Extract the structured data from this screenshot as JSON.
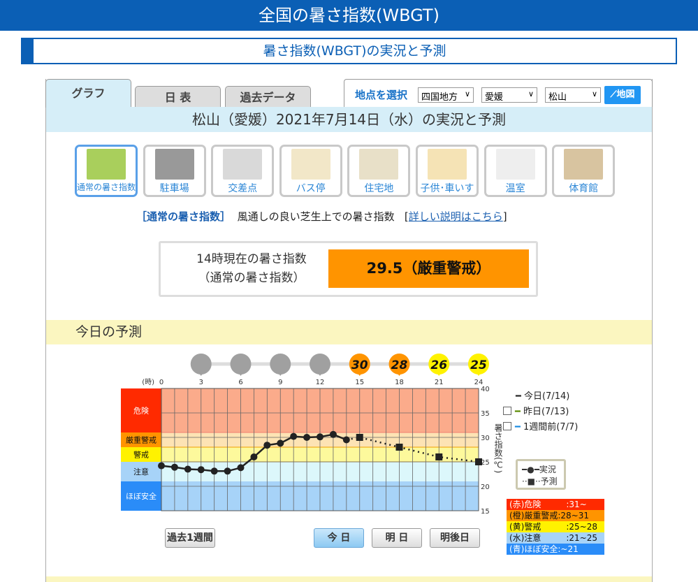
{
  "header": {
    "title": "全国の暑さ指数(WBGT)",
    "subtitle": "暑さ指数(WBGT)の実況と予測"
  },
  "tabs": [
    {
      "label": "グラフ",
      "active": true
    },
    {
      "label": "日 表"
    },
    {
      "label": "過去データ"
    }
  ],
  "location": {
    "label": "地点を選択",
    "region": "四国地方",
    "prefecture": "愛媛",
    "station": "松山",
    "map_button": "地図"
  },
  "date_title": "松山（愛媛）2021年7月14日（水）の実況と予測",
  "categories": [
    {
      "label": "通常の暑さ指数",
      "selected": true,
      "color": "#a9cf5c"
    },
    {
      "label": "駐車場",
      "color": "#999"
    },
    {
      "label": "交差点",
      "color": "#d9d9d9"
    },
    {
      "label": "バス停",
      "color": "#f2e7c8"
    },
    {
      "label": "住宅地",
      "color": "#e8e0c8"
    },
    {
      "label": "子供･車いす",
      "color": "#f5e3b5"
    },
    {
      "label": "温室",
      "color": "#eeeeee"
    },
    {
      "label": "体育館",
      "color": "#d8c4a0"
    }
  ],
  "description": {
    "title": "［通常の暑さ指数］",
    "text": "風通しの良い芝生上での暑さ指数",
    "link": "詳しい説明はこちら",
    "link_open": "[",
    "link_close": "]"
  },
  "current": {
    "label1": "14時現在の暑さ指数",
    "label2": "（通常の暑さ指数）",
    "value": "29.5（厳重警戒）",
    "color": "#ff9400"
  },
  "forecast_heading": "今日の予測",
  "chart_data": {
    "type": "line",
    "xlabel": "(時)",
    "ylabel": "暑さ指数(℃)",
    "xlim": [
      0,
      24
    ],
    "ylim": [
      15,
      40
    ],
    "x_ticks": [
      0,
      3,
      6,
      9,
      12,
      15,
      18,
      21,
      24
    ],
    "y_ticks": [
      15,
      20,
      25,
      30,
      35,
      40
    ],
    "series": [
      {
        "name": "実況",
        "x": [
          0,
          1,
          2,
          3,
          4,
          5,
          6,
          7,
          8,
          9,
          10,
          11,
          12,
          13,
          14
        ],
        "y": [
          24.2,
          23.9,
          23.5,
          23.4,
          23.1,
          23.1,
          23.8,
          26.0,
          28.4,
          28.8,
          30.2,
          30.0,
          30.1,
          30.6,
          29.5
        ],
        "style": "solid-circle"
      },
      {
        "name": "予測",
        "x": [
          15,
          18,
          21,
          24
        ],
        "y": [
          30,
          28,
          26,
          25
        ],
        "style": "dotted-square"
      }
    ],
    "hour_markers": [
      {
        "hour": 3,
        "value": "",
        "color": "#a0a0a0"
      },
      {
        "hour": 6,
        "value": "",
        "color": "#a0a0a0"
      },
      {
        "hour": 9,
        "value": "",
        "color": "#a0a0a0"
      },
      {
        "hour": 12,
        "value": "",
        "color": "#a0a0a0"
      },
      {
        "hour": 15,
        "value": "30",
        "color": "#ff9400"
      },
      {
        "hour": 18,
        "value": "28",
        "color": "#ff9400"
      },
      {
        "hour": 21,
        "value": "26",
        "color": "#fff200"
      },
      {
        "hour": 24,
        "value": "25",
        "color": "#fff200"
      }
    ],
    "bands": [
      {
        "label": "危険",
        "from": 31,
        "to": 40,
        "label_color": "#ff2a00",
        "fill": "#fbab8b",
        "text": "#fff"
      },
      {
        "label": "厳重警戒",
        "from": 28,
        "to": 31,
        "label_color": "#ff9400",
        "fill": "#fde3b4",
        "text": "#111"
      },
      {
        "label": "警戒",
        "from": 25,
        "to": 28,
        "label_color": "#fff200",
        "fill": "#fdf99c",
        "text": "#111"
      },
      {
        "label": "注意",
        "from": 21,
        "to": 25,
        "label_color": "#a7d3f8",
        "fill": "#dcf7fb",
        "text": "#111"
      },
      {
        "label": "ほぼ安全",
        "from": 15,
        "to": 21,
        "label_color": "#2a8cf8",
        "fill": "#a7d3f8",
        "text": "#fff"
      }
    ]
  },
  "legend": {
    "today": "今日(7/14)",
    "yesterday": "昨日(7/13)",
    "week_ago": "1週間前(7/7)",
    "actual": "実況",
    "forecast": "予測",
    "today_color": "#222",
    "yesterday_color": "#5a8a00",
    "week_color": "#1a8ae0"
  },
  "scale": [
    {
      "label": "(赤)危険　　　:31~",
      "color": "#ff2a00",
      "text": "#fff"
    },
    {
      "label": "(橙)厳重警戒:28~31",
      "color": "#ff9400",
      "text": "#111"
    },
    {
      "label": "(黄)警戒　　　:25~28",
      "color": "#fff200",
      "text": "#111"
    },
    {
      "label": "(水)注意　　　:21~25",
      "color": "#a7d3f8",
      "text": "#111"
    },
    {
      "label": "(青)ほぼ安全:~21",
      "color": "#2a8cf8",
      "text": "#fff"
    }
  ],
  "buttons": {
    "past_week": "過去1週間",
    "today": "今 日",
    "tomorrow": "明 日",
    "day_after": "明後日"
  }
}
